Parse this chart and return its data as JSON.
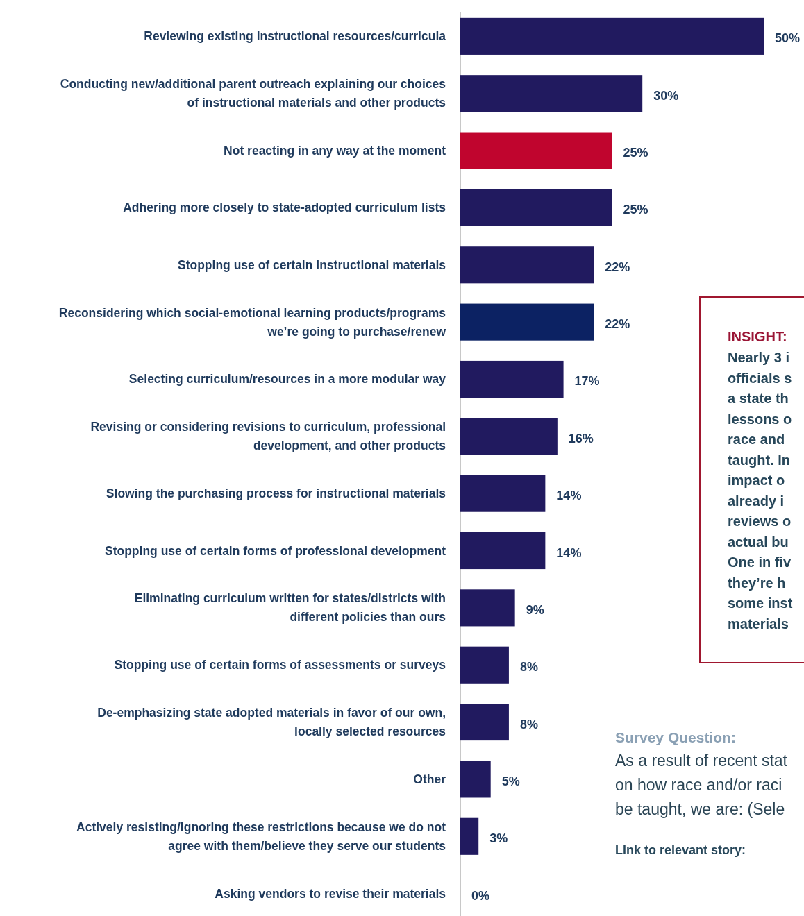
{
  "chart_data": {
    "type": "bar",
    "orientation": "horizontal",
    "data_labels": true,
    "categories": [
      "Reviewing existing instructional resources/curricula",
      "Conducting new/additional parent outreach explaining our choices of instructional materials and other products",
      "Not reacting in any way at the moment",
      "Adhering more closely to state-adopted curriculum lists",
      "Stopping use of certain instructional materials",
      "Reconsidering which social-emotional learning products/programs we’re going to purchase/renew",
      "Selecting curriculum/resources in a more modular way",
      "Revising or considering revisions to curriculum, professional development, and other products",
      "Slowing the purchasing process for instructional materials",
      "Stopping use of certain forms of professional development",
      "Eliminating curriculum written for states/districts with different policies than ours",
      "Stopping use of certain forms of assessments or surveys",
      "De-emphasizing state adopted materials in favor of our own, locally selected resources",
      "Other",
      "Actively resisting/ignoring these restrictions because we do not agree with them/believe they serve our students",
      "Asking vendors to revise their materials"
    ],
    "values": [
      50,
      30,
      25,
      25,
      22,
      22,
      17,
      16,
      14,
      14,
      9,
      8,
      8,
      5,
      3,
      0
    ],
    "value_labels": [
      "50%",
      "30%",
      "25%",
      "25%",
      "22%",
      "22%",
      "17%",
      "16%",
      "14%",
      "14%",
      "9%",
      "8%",
      "8%",
      "5%",
      "3%",
      "0%"
    ],
    "colors": [
      "#211a5f",
      "#211a5f",
      "#c0052e",
      "#211a5f",
      "#211a5f",
      "#0c2263",
      "#211a5f",
      "#211a5f",
      "#211a5f",
      "#211a5f",
      "#211a5f",
      "#211a5f",
      "#211a5f",
      "#211a5f",
      "#211a5f",
      "#211a5f"
    ],
    "annotations": [
      "INSIGHT:",
      "Nearly 3 i\nofficials s\na state th\nlessons o\nrace and\ntaught. In\nimpact o\nalready i\nreviews o\nactual bu\nOne in fiv\nthey’re h\nsome inst\nmaterials",
      "Survey Question:",
      "As a result of recent stat\non how race and/or raci\nbe taught, we are: (Sele",
      "Link to relevant story:"
    ]
  }
}
